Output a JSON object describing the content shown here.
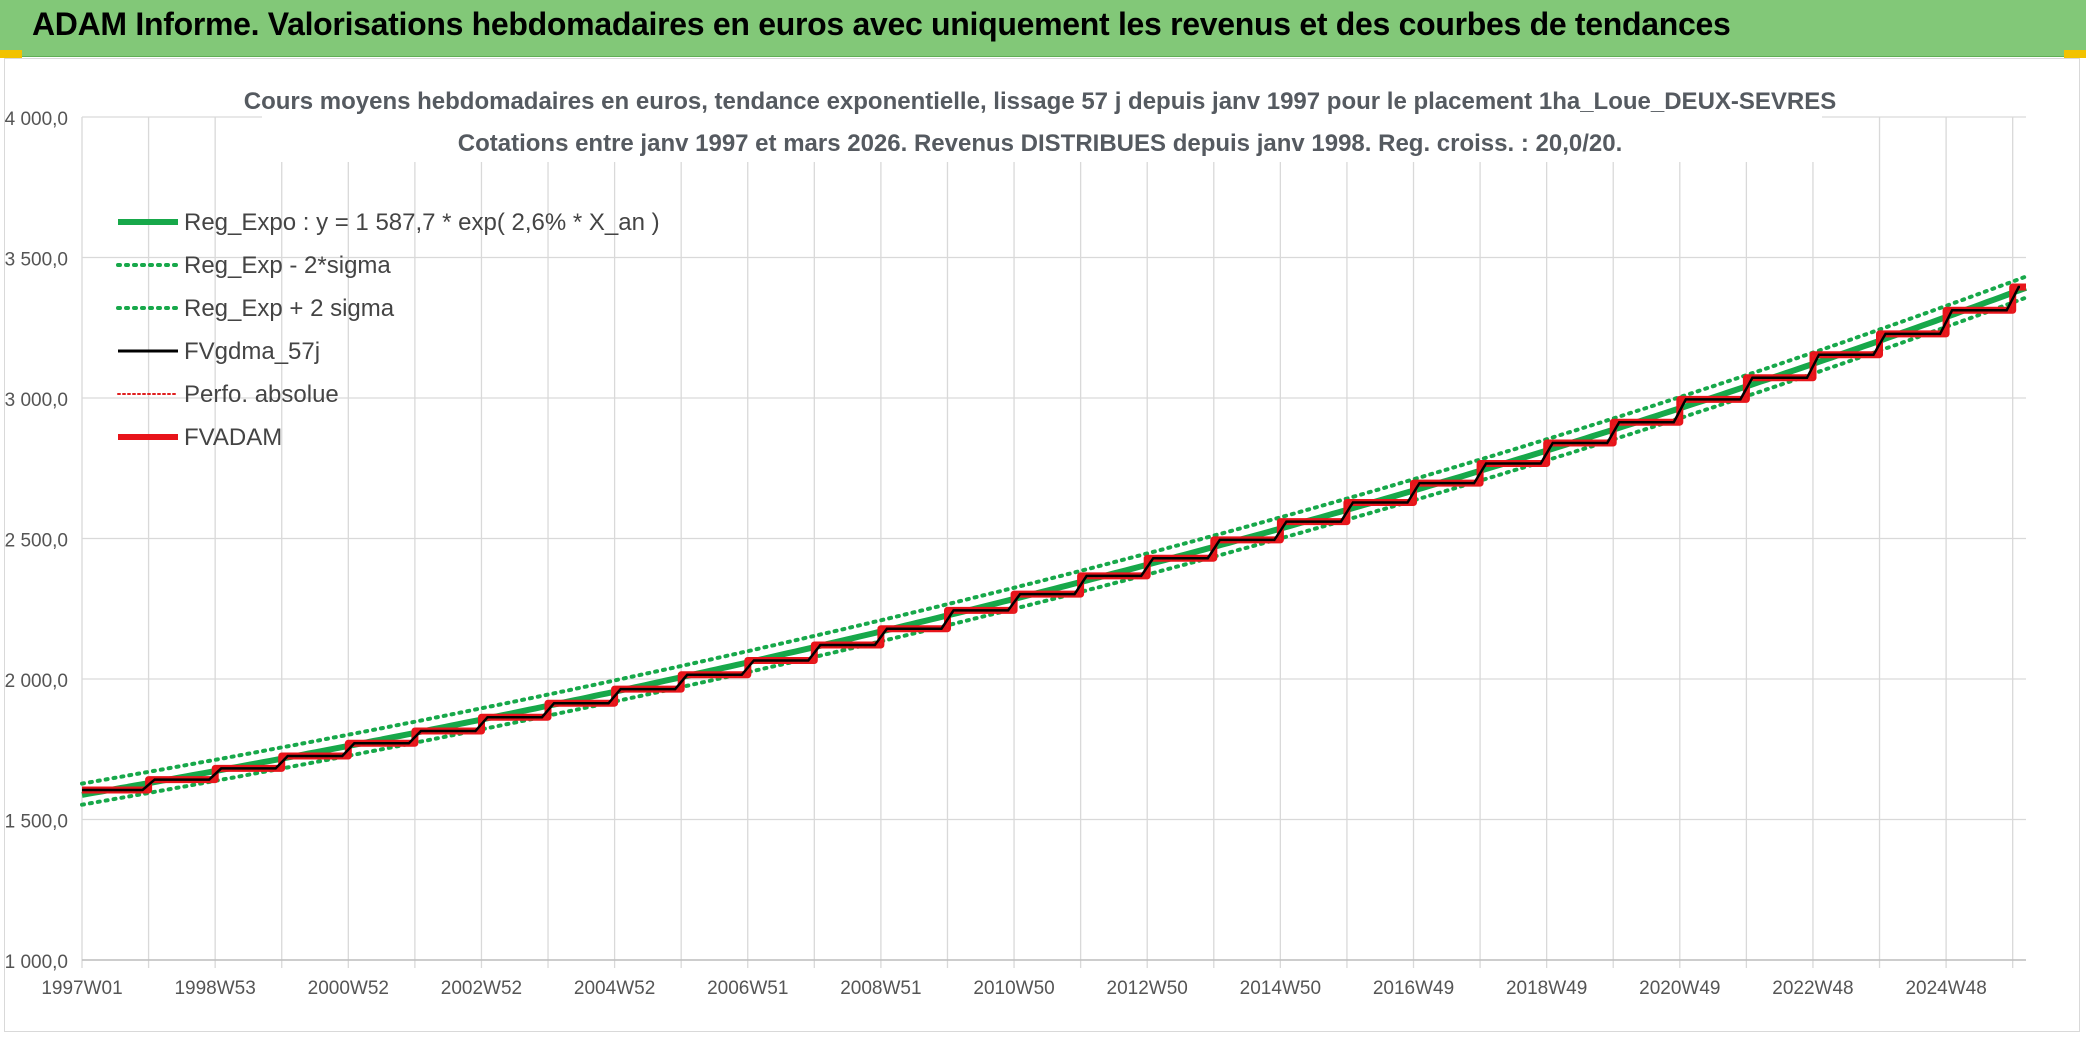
{
  "banner": {
    "title": "ADAM Informe. Valorisations hebdomadaires en euros avec uniquement les revenus et des courbes de tendances"
  },
  "colors": {
    "banner_bg": "#82c878",
    "reg_expo": "#17a84a",
    "bands": "#17a84a",
    "fv_gdma": "#000000",
    "perfo": "#e02020",
    "fv_adam": "#e8141a",
    "grid": "#d9d9d9"
  },
  "chart_data": {
    "type": "line",
    "title": "Cours moyens hebdomadaires en euros, tendance exponentielle, lissage 57 j depuis janv 1997 pour le placement 1ha_Loue_DEUX-SEVRES",
    "subtitle": "Cotations entre janv 1997 et mars 2026. Revenus DISTRIBUES depuis janv 1998. Reg. croiss. : 20,0/20.",
    "xlabel": "",
    "ylabel": "",
    "ylim": [
      1000,
      4000
    ],
    "yticks": [
      "1 000,0",
      "1 500,0",
      "2 000,0",
      "2 500,0",
      "3 000,0",
      "3 500,0",
      "4 000,0"
    ],
    "xticks": [
      "1997W01",
      "1998W53",
      "2000W52",
      "2002W52",
      "2004W52",
      "2006W51",
      "2008W51",
      "2010W50",
      "2012W50",
      "2014W50",
      "2016W49",
      "2018W49",
      "2020W49",
      "2022W48",
      "2024W48"
    ],
    "x_range_years": [
      1997.0,
      2026.2
    ],
    "grid": true,
    "legend_position": "top-left",
    "series": [
      {
        "name": "Reg_Expo : y = 1 587,7 * exp( 2,6% *  X_an )",
        "kind": "exp_fit",
        "a": 1587.7,
        "rate": 0.026
      },
      {
        "name": "Reg_Exp - 2*sigma",
        "kind": "exp_band",
        "offset": -35
      },
      {
        "name": "Reg_Exp + 2 sigma",
        "kind": "exp_band",
        "offset": 40
      },
      {
        "name": "FVgdma_57j",
        "kind": "step_smooth"
      },
      {
        "name": "Perfo. absolue",
        "kind": "step_dotted"
      },
      {
        "name": "FVADAM",
        "kind": "step",
        "x": [
          1997.0,
          1998.0,
          1999.0,
          2000.0,
          2001.0,
          2002.0,
          2003.0,
          2004.0,
          2005.0,
          2006.0,
          2007.0,
          2008.0,
          2009.0,
          2010.0,
          2011.0,
          2012.0,
          2013.0,
          2014.0,
          2015.0,
          2016.0,
          2017.0,
          2018.0,
          2019.0,
          2020.0,
          2021.0,
          2022.0,
          2023.0,
          2024.0,
          2025.0,
          2026.0
        ],
        "values": [
          1605,
          1642,
          1682,
          1726,
          1771,
          1815,
          1864,
          1914,
          1964,
          2015,
          2066,
          2121,
          2179,
          2244,
          2302,
          2367,
          2430,
          2495,
          2560,
          2628,
          2697,
          2767,
          2840,
          2914,
          2995,
          3072,
          3154,
          3228,
          3312,
          3395
        ]
      }
    ]
  }
}
